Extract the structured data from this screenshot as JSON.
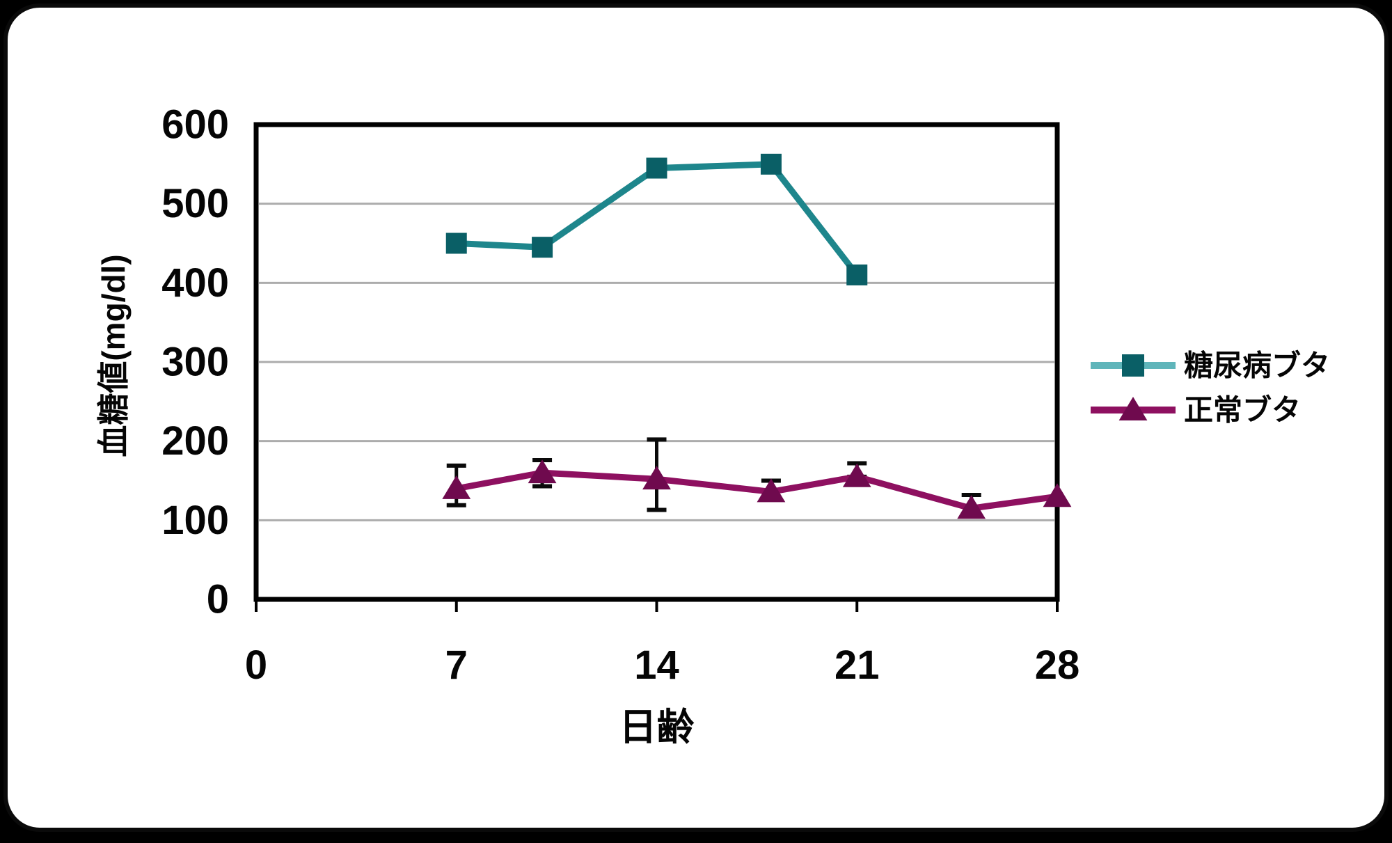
{
  "chart_data": {
    "type": "line",
    "title": "",
    "xlabel": "日齢",
    "ylabel": "血糖値(mg/dl)",
    "xlim": [
      0,
      28
    ],
    "ylim": [
      0,
      600
    ],
    "xticks": [
      0,
      7,
      14,
      21,
      28
    ],
    "yticks": [
      0,
      100,
      200,
      300,
      400,
      500,
      600
    ],
    "grid": "horizontal-only",
    "grid_color": "#ACACAC",
    "frame_color": "#000000",
    "legend_position": "right-middle",
    "series": [
      {
        "id": "diabetic-pig",
        "name": "糖尿病ブタ",
        "marker": "square",
        "line_color": "#1E868C",
        "marker_color": "#0A5F66",
        "legend_line_color": "#5FB5BA",
        "x": [
          7,
          10,
          14,
          18,
          21
        ],
        "y": [
          450,
          445,
          545,
          550,
          410
        ],
        "error_bars": []
      },
      {
        "id": "normal-pig",
        "name": "正常ブタ",
        "marker": "triangle",
        "line_color": "#8E1060",
        "marker_color": "#6F0A4E",
        "legend_line_color": "#8E1060",
        "x": [
          7,
          10,
          14,
          18,
          21,
          25,
          28
        ],
        "y": [
          140,
          160,
          152,
          136,
          155,
          115,
          130
        ],
        "error_bars": [
          {
            "x": 7,
            "low": 119,
            "high": 169
          },
          {
            "x": 10,
            "low": 143,
            "high": 176
          },
          {
            "x": 14,
            "low": 113,
            "high": 202
          },
          {
            "x": 18,
            "low": 126,
            "high": 150
          },
          {
            "x": 21,
            "low": 155,
            "high": 172
          },
          {
            "x": 25,
            "low": 108,
            "high": 132
          }
        ]
      }
    ],
    "error_bar_color": "#0a0a0a"
  }
}
